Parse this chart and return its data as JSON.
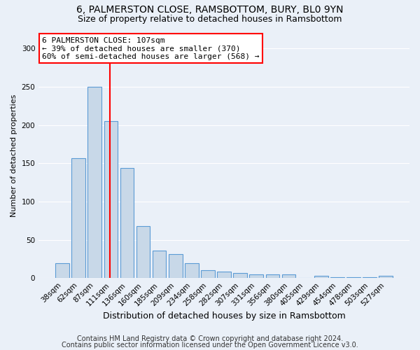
{
  "title1": "6, PALMERSTON CLOSE, RAMSBOTTOM, BURY, BL0 9YN",
  "title2": "Size of property relative to detached houses in Ramsbottom",
  "xlabel": "Distribution of detached houses by size in Ramsbottom",
  "ylabel": "Number of detached properties",
  "footnote1": "Contains HM Land Registry data © Crown copyright and database right 2024.",
  "footnote2": "Contains public sector information licensed under the Open Government Licence v3.0.",
  "categories": [
    "38sqm",
    "62sqm",
    "87sqm",
    "111sqm",
    "136sqm",
    "160sqm",
    "185sqm",
    "209sqm",
    "234sqm",
    "258sqm",
    "282sqm",
    "307sqm",
    "331sqm",
    "356sqm",
    "380sqm",
    "405sqm",
    "429sqm",
    "454sqm",
    "478sqm",
    "503sqm",
    "527sqm"
  ],
  "values": [
    19,
    157,
    250,
    205,
    144,
    68,
    36,
    31,
    19,
    10,
    8,
    7,
    5,
    5,
    5,
    0,
    3,
    1,
    1,
    1,
    3
  ],
  "bar_color": "#c8d8e8",
  "bar_edge_color": "#5b9bd5",
  "red_line_index": 2.95,
  "annotation_label": "6 PALMERSTON CLOSE: 107sqm",
  "annotation_line1": "← 39% of detached houses are smaller (370)",
  "annotation_line2": "60% of semi-detached houses are larger (568) →",
  "annotation_box_color": "white",
  "annotation_box_edge": "red",
  "ylim": [
    0,
    320
  ],
  "yticks": [
    0,
    50,
    100,
    150,
    200,
    250,
    300
  ],
  "bg_color": "#eaf0f8",
  "grid_color": "white",
  "title1_fontsize": 10,
  "title2_fontsize": 9,
  "xlabel_fontsize": 9,
  "ylabel_fontsize": 8,
  "tick_fontsize": 7.5,
  "footnote_fontsize": 7,
  "annot_fontsize": 8
}
